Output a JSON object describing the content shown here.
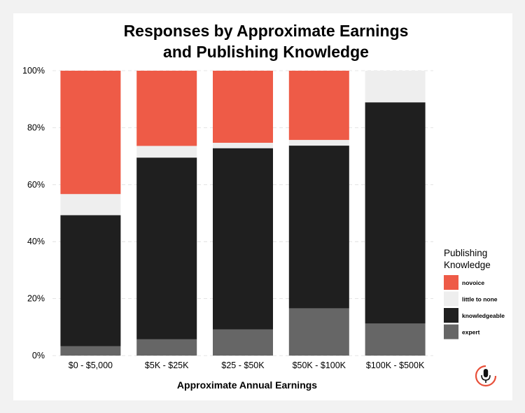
{
  "chart_data": {
    "type": "bar",
    "stacked": true,
    "title": "Responses by Approximate Earnings and Publishing Knowledge",
    "title_lines": [
      "Responses by Approximate Earnings",
      "and Publishing Knowledge"
    ],
    "xlabel": "Approximate Annual Earnings",
    "ylabel": "",
    "ylim": [
      0,
      100
    ],
    "yticks": [
      "0%",
      "20%",
      "40%",
      "60%",
      "80%",
      "100%"
    ],
    "ytick_values": [
      0,
      20,
      40,
      60,
      80,
      100
    ],
    "categories": [
      "$0 - $5,000",
      "$5K - $25K",
      "$25 - $50K",
      "$50K - $100K",
      "$100K - $500K"
    ],
    "series": [
      {
        "name": "expert",
        "color": "#666666",
        "values": [
          3.3,
          5.7,
          9.2,
          16.6,
          11.3
        ]
      },
      {
        "name": "knowledgeable",
        "color": "#1f1f1f",
        "values": [
          46.0,
          63.8,
          63.6,
          57.1,
          77.6
        ]
      },
      {
        "name": "little to none",
        "color": "#eeeeee",
        "values": [
          7.4,
          4.1,
          1.9,
          2.0,
          11.1
        ]
      },
      {
        "name": "novoice",
        "color": "#ee5b47",
        "values": [
          43.3,
          26.4,
          25.3,
          24.3,
          0
        ]
      }
    ],
    "grid": true,
    "legend": {
      "title_lines": [
        "Publishing",
        "Knowledge"
      ],
      "placement": "right",
      "order": [
        "novoice",
        "little to none",
        "knowledgeable",
        "expert"
      ]
    }
  },
  "logo": {
    "name": "microphone-logo",
    "accent": "#e8503a"
  }
}
